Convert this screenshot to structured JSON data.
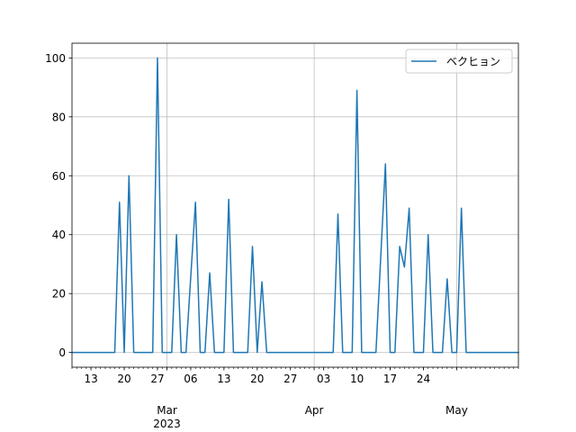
{
  "chart_data": {
    "type": "line",
    "x_axis_type": "date",
    "xlim": [
      "2023-02-09",
      "2023-05-14"
    ],
    "ylim": [
      -5,
      105
    ],
    "grid": true,
    "legend_position": "top-right",
    "y_ticks": [
      0,
      20,
      40,
      60,
      80,
      100
    ],
    "x_minor_ticks": [
      {
        "date": "2023-02-13",
        "label": "13"
      },
      {
        "date": "2023-02-20",
        "label": "20"
      },
      {
        "date": "2023-02-27",
        "label": "27"
      },
      {
        "date": "2023-03-06",
        "label": "06"
      },
      {
        "date": "2023-03-13",
        "label": "13"
      },
      {
        "date": "2023-03-20",
        "label": "20"
      },
      {
        "date": "2023-03-27",
        "label": "27"
      },
      {
        "date": "2023-04-03",
        "label": "03"
      },
      {
        "date": "2023-04-10",
        "label": "10"
      },
      {
        "date": "2023-04-17",
        "label": "17"
      },
      {
        "date": "2023-04-24",
        "label": "24"
      }
    ],
    "x_major_ticks": [
      {
        "date": "2023-03-01",
        "label": "Mar",
        "sublabel": "2023"
      },
      {
        "date": "2023-04-01",
        "label": "Apr",
        "sublabel": ""
      },
      {
        "date": "2023-05-01",
        "label": "May",
        "sublabel": ""
      }
    ],
    "series": [
      {
        "name": "ベクヒョン",
        "color": "#1f77b4",
        "points": [
          [
            "2023-02-09",
            0
          ],
          [
            "2023-02-18",
            0
          ],
          [
            "2023-02-19",
            51
          ],
          [
            "2023-02-20",
            0
          ],
          [
            "2023-02-21",
            60
          ],
          [
            "2023-02-22",
            0
          ],
          [
            "2023-02-26",
            0
          ],
          [
            "2023-02-27",
            100
          ],
          [
            "2023-02-28",
            0
          ],
          [
            "2023-03-02",
            0
          ],
          [
            "2023-03-03",
            40
          ],
          [
            "2023-03-04",
            0
          ],
          [
            "2023-03-05",
            0
          ],
          [
            "2023-03-07",
            51
          ],
          [
            "2023-03-08",
            0
          ],
          [
            "2023-03-09",
            0
          ],
          [
            "2023-03-10",
            27
          ],
          [
            "2023-03-11",
            0
          ],
          [
            "2023-03-13",
            0
          ],
          [
            "2023-03-14",
            52
          ],
          [
            "2023-03-15",
            0
          ],
          [
            "2023-03-18",
            0
          ],
          [
            "2023-03-19",
            36
          ],
          [
            "2023-03-20",
            0
          ],
          [
            "2023-03-21",
            24
          ],
          [
            "2023-03-22",
            0
          ],
          [
            "2023-04-05",
            0
          ],
          [
            "2023-04-06",
            47
          ],
          [
            "2023-04-07",
            0
          ],
          [
            "2023-04-09",
            0
          ],
          [
            "2023-04-10",
            89
          ],
          [
            "2023-04-11",
            0
          ],
          [
            "2023-04-14",
            0
          ],
          [
            "2023-04-16",
            64
          ],
          [
            "2023-04-17",
            0
          ],
          [
            "2023-04-18",
            0
          ],
          [
            "2023-04-19",
            36
          ],
          [
            "2023-04-20",
            29
          ],
          [
            "2023-04-21",
            49
          ],
          [
            "2023-04-22",
            0
          ],
          [
            "2023-04-24",
            0
          ],
          [
            "2023-04-25",
            40
          ],
          [
            "2023-04-26",
            0
          ],
          [
            "2023-04-28",
            0
          ],
          [
            "2023-04-29",
            25
          ],
          [
            "2023-04-30",
            0
          ],
          [
            "2023-05-01",
            0
          ],
          [
            "2023-05-02",
            49
          ],
          [
            "2023-05-03",
            0
          ],
          [
            "2023-05-14",
            0
          ]
        ]
      }
    ]
  }
}
